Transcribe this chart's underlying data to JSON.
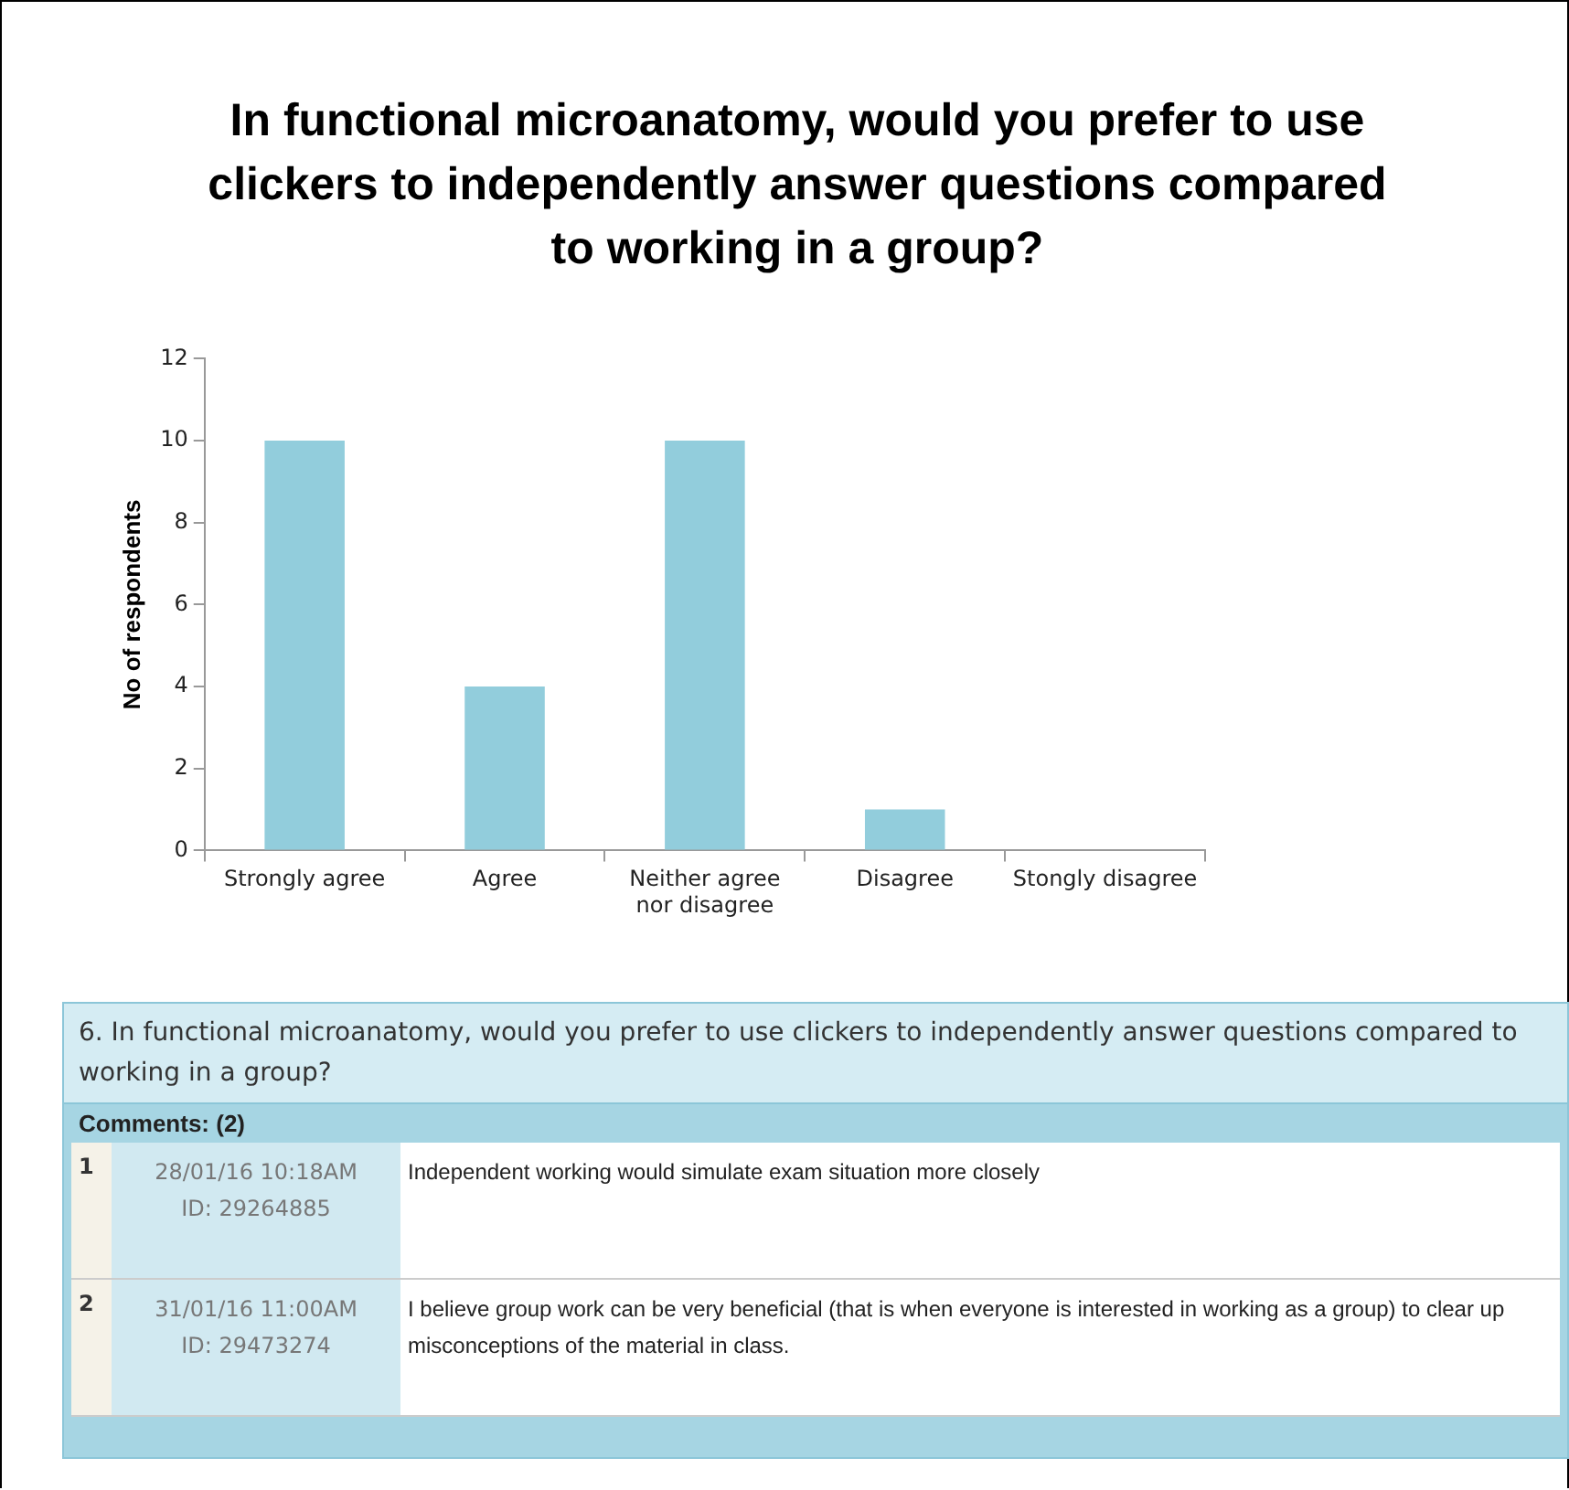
{
  "chart_data": [
    {
      "type": "bar",
      "title": "In functional microanatomy, would you prefer to use clickers to independently answer questions compared to working in a group?",
      "ylabel": "No of respondents",
      "categories": [
        "Strongly agree",
        "Agree",
        "Neither agree nor disagree",
        "Disagree",
        "Stongly disagree"
      ],
      "values": [
        10,
        4,
        10,
        1,
        0
      ],
      "color": "#92cddc",
      "ylim": [
        0,
        12
      ],
      "yticks": [
        0,
        2,
        4,
        6,
        8,
        10,
        12
      ],
      "legend": false
    },
    {
      "type": "other",
      "title": "6. In functional microanatomy,  would you prefer to use clickers to independently answer questions compared to working in a group?",
      "annotations": [
        "Comments: (2)",
        "1",
        "28/01/16 10:18AM",
        "ID: 29264885",
        "Independent working would simulate exam situation more closely",
        "2",
        "31/01/16 11:00AM",
        "ID: 29473274",
        "I believe group work can be very beneficial (that is when everyone is interested in working as a group) to clear up misconceptions of the material in class."
      ]
    }
  ]
}
